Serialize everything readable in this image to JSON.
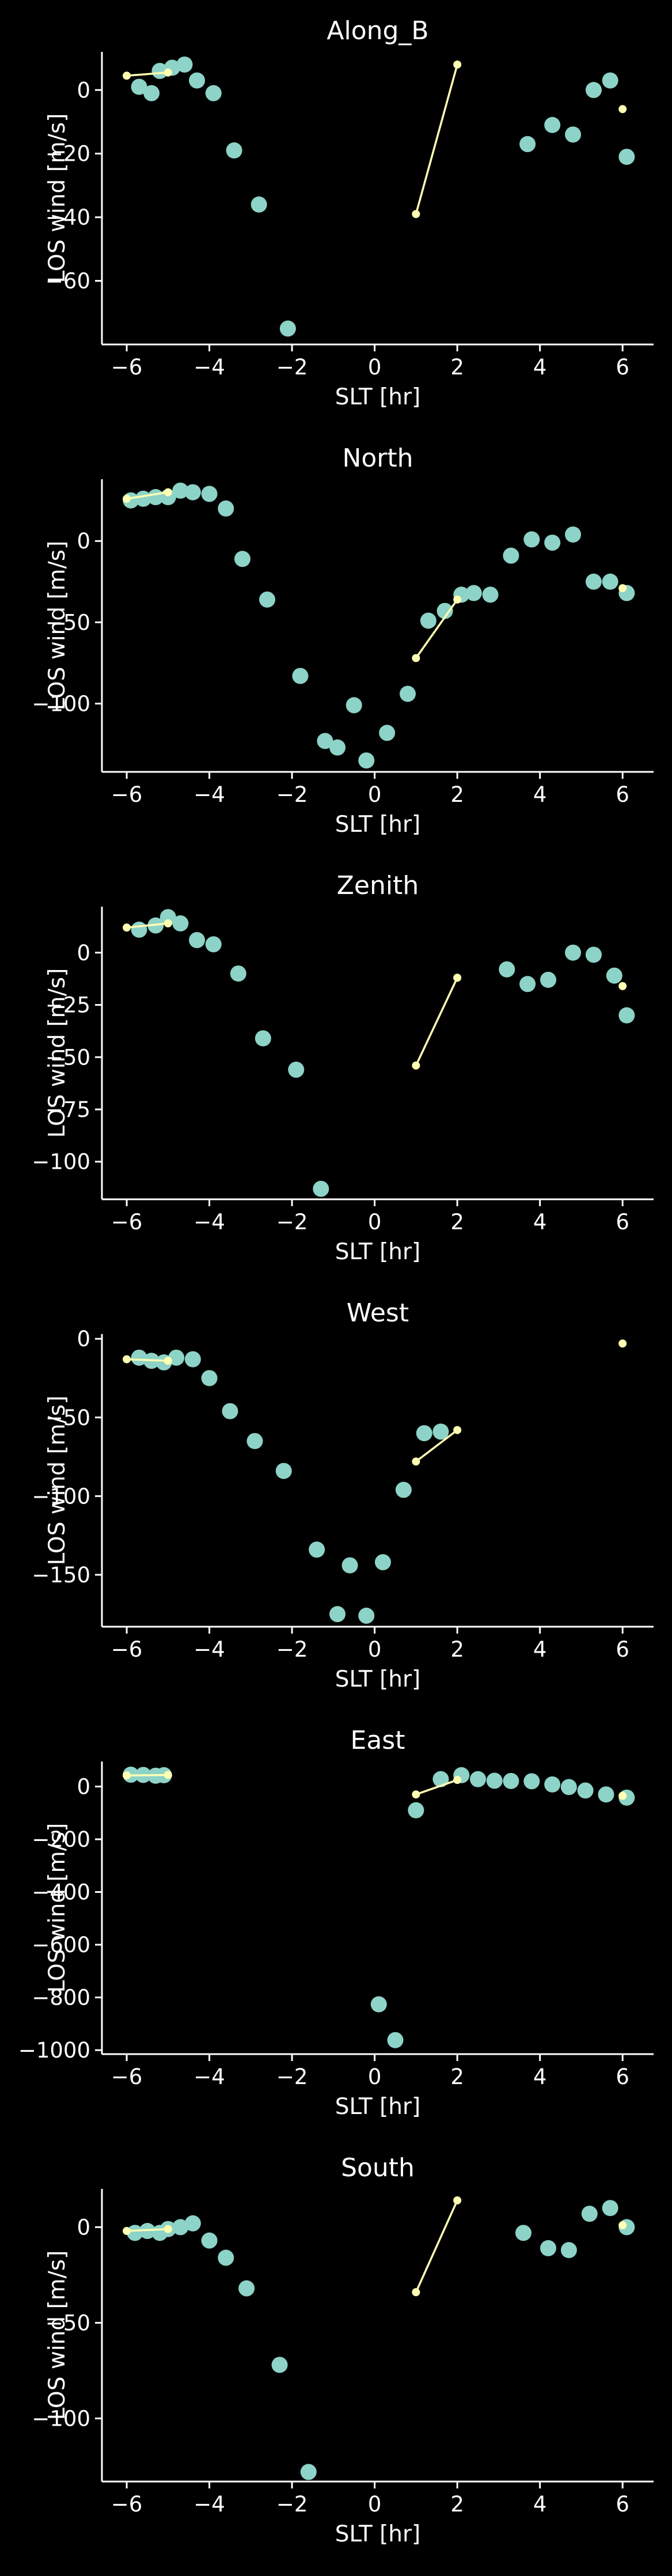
{
  "theme": {
    "background": "#000000",
    "foreground": "#ffffff",
    "scatter_color": "#8dd3c7",
    "line_color": "#ffffb3"
  },
  "chart_data": [
    {
      "type": "scatter",
      "title": "Along_B",
      "xlabel": "SLT [hr]",
      "ylabel": "LOS wind [m/s]",
      "xlim": [
        -6.6,
        6.75
      ],
      "ylim": [
        -80,
        12
      ],
      "xticks": [
        -6,
        -4,
        -2,
        0,
        2,
        4,
        6
      ],
      "yticks": [
        -60,
        -40,
        -20,
        0
      ],
      "scatter": [
        [
          -5.7,
          1
        ],
        [
          -5.4,
          -1
        ],
        [
          -5.2,
          6
        ],
        [
          -4.9,
          7
        ],
        [
          -4.6,
          8
        ],
        [
          -4.3,
          3
        ],
        [
          -3.9,
          -1
        ],
        [
          -3.4,
          -19
        ],
        [
          -2.8,
          -36
        ],
        [
          -2.1,
          -75
        ],
        [
          3.7,
          -17
        ],
        [
          4.3,
          -11
        ],
        [
          4.8,
          -14
        ],
        [
          5.3,
          0
        ],
        [
          5.7,
          3
        ],
        [
          6.1,
          -21
        ]
      ],
      "line_segments": [
        [
          [
            -6.0,
            4.5
          ],
          [
            -5.0,
            5.5
          ]
        ],
        [
          [
            1.0,
            -39
          ],
          [
            2.0,
            8
          ]
        ]
      ],
      "line_points": [
        [
          6.0,
          -6
        ]
      ]
    },
    {
      "type": "scatter",
      "title": "North",
      "xlabel": "SLT [hr]",
      "ylabel": "LOS wind [m/s]",
      "xlim": [
        -6.6,
        6.75
      ],
      "ylim": [
        -142,
        38
      ],
      "xticks": [
        -6,
        -4,
        -2,
        0,
        2,
        4,
        6
      ],
      "yticks": [
        -100,
        -50,
        0
      ],
      "scatter": [
        [
          -5.9,
          25
        ],
        [
          -5.6,
          26
        ],
        [
          -5.3,
          27
        ],
        [
          -5.0,
          27
        ],
        [
          -4.7,
          31
        ],
        [
          -4.4,
          30
        ],
        [
          -4.0,
          29
        ],
        [
          -3.6,
          20
        ],
        [
          -3.2,
          -11
        ],
        [
          -2.6,
          -36
        ],
        [
          -1.8,
          -83
        ],
        [
          -1.2,
          -123
        ],
        [
          -0.9,
          -127
        ],
        [
          -0.5,
          -101
        ],
        [
          -0.2,
          -135
        ],
        [
          0.3,
          -118
        ],
        [
          0.8,
          -94
        ],
        [
          1.3,
          -49
        ],
        [
          1.7,
          -43
        ],
        [
          2.1,
          -33
        ],
        [
          2.4,
          -32
        ],
        [
          2.8,
          -33
        ],
        [
          3.3,
          -9
        ],
        [
          3.8,
          1
        ],
        [
          4.3,
          -1
        ],
        [
          4.8,
          4
        ],
        [
          5.3,
          -25
        ],
        [
          5.7,
          -25
        ],
        [
          6.1,
          -32
        ]
      ],
      "line_segments": [
        [
          [
            -6.0,
            26
          ],
          [
            -5.0,
            30
          ]
        ],
        [
          [
            1.0,
            -72
          ],
          [
            2.0,
            -36
          ]
        ]
      ],
      "line_points": [
        [
          6.0,
          -29
        ]
      ]
    },
    {
      "type": "scatter",
      "title": "Zenith",
      "xlabel": "SLT [hr]",
      "ylabel": "LOS wind [m/s]",
      "xlim": [
        -6.6,
        6.75
      ],
      "ylim": [
        -118,
        22
      ],
      "xticks": [
        -6,
        -4,
        -2,
        0,
        2,
        4,
        6
      ],
      "yticks": [
        -100,
        -75,
        -50,
        -25,
        0
      ],
      "scatter": [
        [
          -5.7,
          11
        ],
        [
          -5.3,
          13
        ],
        [
          -5.0,
          17
        ],
        [
          -4.7,
          14
        ],
        [
          -4.3,
          6
        ],
        [
          -3.9,
          4
        ],
        [
          -3.3,
          -10
        ],
        [
          -2.7,
          -41
        ],
        [
          -1.9,
          -56
        ],
        [
          -1.3,
          -113
        ],
        [
          3.2,
          -8
        ],
        [
          3.7,
          -15
        ],
        [
          4.2,
          -13
        ],
        [
          4.8,
          0
        ],
        [
          5.3,
          -1
        ],
        [
          5.8,
          -11
        ],
        [
          6.1,
          -30
        ]
      ],
      "line_segments": [
        [
          [
            -6.0,
            12
          ],
          [
            -5.0,
            14
          ]
        ],
        [
          [
            1.0,
            -54
          ],
          [
            2.0,
            -12
          ]
        ]
      ],
      "line_points": [
        [
          6.0,
          -16
        ]
      ]
    },
    {
      "type": "scatter",
      "title": "West",
      "xlabel": "SLT [hr]",
      "ylabel": "LOS wind [m/s]",
      "xlim": [
        -6.6,
        6.75
      ],
      "ylim": [
        -183,
        3
      ],
      "xticks": [
        -6,
        -4,
        -2,
        0,
        2,
        4,
        6
      ],
      "yticks": [
        -150,
        -100,
        -50,
        0
      ],
      "scatter": [
        [
          -5.7,
          -12
        ],
        [
          -5.4,
          -14
        ],
        [
          -5.1,
          -15
        ],
        [
          -4.8,
          -12
        ],
        [
          -4.4,
          -13
        ],
        [
          -4.0,
          -25
        ],
        [
          -3.5,
          -46
        ],
        [
          -2.9,
          -65
        ],
        [
          -2.2,
          -84
        ],
        [
          -1.4,
          -134
        ],
        [
          -0.9,
          -175
        ],
        [
          -0.6,
          -144
        ],
        [
          -0.2,
          -176
        ],
        [
          0.2,
          -142
        ],
        [
          0.7,
          -96
        ],
        [
          1.2,
          -60
        ],
        [
          1.6,
          -59
        ]
      ],
      "line_segments": [
        [
          [
            -6.0,
            -13
          ],
          [
            -5.0,
            -14
          ]
        ],
        [
          [
            1.0,
            -78
          ],
          [
            2.0,
            -58
          ]
        ]
      ],
      "line_points": [
        [
          6.0,
          -3
        ]
      ]
    },
    {
      "type": "scatter",
      "title": "East",
      "xlabel": "SLT [hr]",
      "ylabel": "LOS wind [m/s]",
      "xlim": [
        -6.6,
        6.75
      ],
      "ylim": [
        -1015,
        95
      ],
      "xticks": [
        -6,
        -4,
        -2,
        0,
        2,
        4,
        6
      ],
      "yticks": [
        -1000,
        -800,
        -600,
        -400,
        -200,
        0
      ],
      "scatter": [
        [
          -5.9,
          45
        ],
        [
          -5.6,
          44
        ],
        [
          -5.3,
          41
        ],
        [
          -5.1,
          43
        ],
        [
          1.0,
          -90
        ],
        [
          1.6,
          28
        ],
        [
          2.1,
          43
        ],
        [
          2.5,
          28
        ],
        [
          2.9,
          22
        ],
        [
          3.3,
          21
        ],
        [
          3.8,
          20
        ],
        [
          4.3,
          8
        ],
        [
          4.7,
          -2
        ],
        [
          5.1,
          -15
        ],
        [
          5.6,
          -30
        ],
        [
          6.1,
          -42
        ],
        [
          0.1,
          -826
        ],
        [
          0.5,
          -962
        ]
      ],
      "line_segments": [
        [
          [
            -6.0,
            42
          ],
          [
            -5.0,
            44
          ]
        ],
        [
          [
            1.0,
            -30
          ],
          [
            2.0,
            25
          ]
        ]
      ],
      "line_points": [
        [
          6.0,
          -35
        ]
      ]
    },
    {
      "type": "scatter",
      "title": "South",
      "xlabel": "SLT [hr]",
      "ylabel": "LOS wind [m/s]",
      "xlim": [
        -6.6,
        6.75
      ],
      "ylim": [
        -133,
        20
      ],
      "xticks": [
        -6,
        -4,
        -2,
        0,
        2,
        4,
        6
      ],
      "yticks": [
        -100,
        -50,
        0
      ],
      "scatter": [
        [
          -5.8,
          -3
        ],
        [
          -5.5,
          -2
        ],
        [
          -5.2,
          -3
        ],
        [
          -5.0,
          -1
        ],
        [
          -4.7,
          0
        ],
        [
          -4.4,
          2
        ],
        [
          -4.0,
          -7
        ],
        [
          -3.6,
          -16
        ],
        [
          -3.1,
          -32
        ],
        [
          -2.3,
          -72
        ],
        [
          -1.6,
          -128
        ],
        [
          3.6,
          -3
        ],
        [
          4.2,
          -11
        ],
        [
          4.7,
          -12
        ],
        [
          5.2,
          7
        ],
        [
          5.7,
          10
        ],
        [
          6.1,
          0
        ]
      ],
      "line_segments": [
        [
          [
            -6.0,
            -2
          ],
          [
            -5.0,
            -1
          ]
        ],
        [
          [
            1.0,
            -34
          ],
          [
            2.0,
            14
          ]
        ]
      ],
      "line_points": [
        [
          6.0,
          1
        ]
      ]
    }
  ]
}
